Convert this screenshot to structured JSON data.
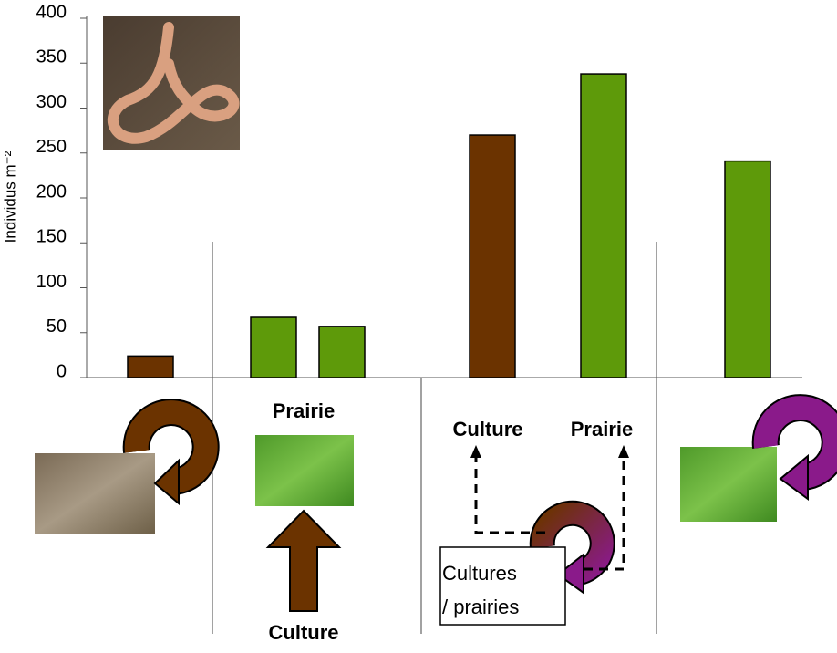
{
  "chart_data": {
    "type": "bar",
    "ylabel": "Individus m⁻²",
    "categories": [
      null,
      null,
      null,
      null,
      null,
      null
    ],
    "values": [
      24,
      67,
      57,
      270,
      338,
      241
    ],
    "colors": [
      "#6b3300",
      "#5e9a0a",
      "#5e9a0a",
      "#6b3300",
      "#5e9a0a",
      "#5e9a0a"
    ],
    "ylim": [
      0,
      400
    ],
    "yticks": [
      0,
      50,
      100,
      150,
      200,
      250,
      300,
      350,
      400
    ],
    "grid": false,
    "annotations": [
      "Prairie",
      "Culture",
      "Culture",
      "Prairie",
      "Cultures",
      "/ prairies"
    ]
  }
}
